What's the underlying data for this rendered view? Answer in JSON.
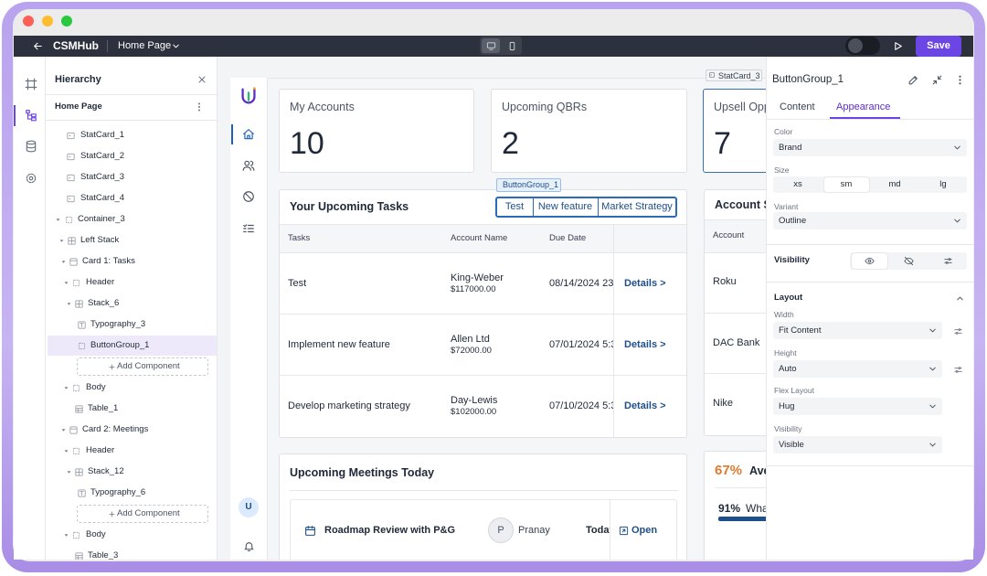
{
  "window": {
    "app_name": "CSMHub",
    "page_name": "Home Page",
    "save": "Save"
  },
  "hierarchy": {
    "title": "Hierarchy",
    "page": "Home Page",
    "items": [
      "StatCard_1",
      "StatCard_2",
      "StatCard_3",
      "StatCard_4",
      "Container_3",
      "Left Stack",
      "Card 1: Tasks",
      "Header",
      "Stack_6",
      "Typography_3",
      "ButtonGroup_1",
      "Add Component",
      "Body",
      "Table_1",
      "Card 2: Meetings",
      "Header",
      "Stack_12",
      "Typography_6",
      "Add Component",
      "Body",
      "Table_3"
    ]
  },
  "canvas": {
    "selected_tag": "StatCard_3",
    "nav_avatar": "U",
    "stat_cards": [
      {
        "title": "My Accounts",
        "value": 10
      },
      {
        "title": "Upcoming QBRs",
        "value": 2
      },
      {
        "title": "Upsell Opp",
        "value": 7
      }
    ],
    "tasks": {
      "title": "Your Upcoming Tasks",
      "tag": "ButtonGroup_1",
      "buttons": [
        "Test",
        "New feature",
        "Market Strategy"
      ],
      "columns": [
        "Tasks",
        "Account Name",
        "Due Date"
      ],
      "rows": [
        [
          "Test",
          "King-Weber",
          "$117000.00",
          "08/14/2024 23:",
          "Details >"
        ],
        [
          "Implement new feature",
          "Allen Ltd",
          "$72000.00",
          "07/01/2024 5:3",
          "Details >"
        ],
        [
          "Develop marketing strategy",
          "Day-Lewis",
          "$102000.00",
          "07/10/2024 5:3",
          "Details >"
        ]
      ]
    },
    "accounts": {
      "title": "Account S",
      "column": "Account",
      "rows": [
        "Roku",
        "DAC Bank",
        "Nike"
      ]
    },
    "meetings": {
      "title": "Upcoming Meetings Today",
      "rows": [
        [
          "Roadmap Review with P&G",
          "P",
          "Pranay",
          "Today",
          "Open"
        ]
      ]
    },
    "metrics": [
      {
        "value": "67%",
        "label": "Ave"
      },
      {
        "value": "91%",
        "label": "Wha"
      }
    ]
  },
  "inspector": {
    "title": "ButtonGroup_1",
    "tabs": [
      "Content",
      "Appearance"
    ],
    "color": {
      "label": "Color",
      "value": "Brand"
    },
    "size": {
      "label": "Size",
      "options": [
        "xs",
        "sm",
        "md",
        "lg"
      ]
    },
    "variant": {
      "label": "Variant",
      "value": "Outline"
    },
    "visibility": "Visibility",
    "layout": {
      "title": "Layout",
      "fields": [
        {
          "label": "Width",
          "value": "Fit Content"
        },
        {
          "label": "Height",
          "value": "Auto"
        },
        {
          "label": "Flex Layout",
          "value": "Hug"
        },
        {
          "label": "Visibility",
          "value": "Visible"
        }
      ]
    }
  }
}
